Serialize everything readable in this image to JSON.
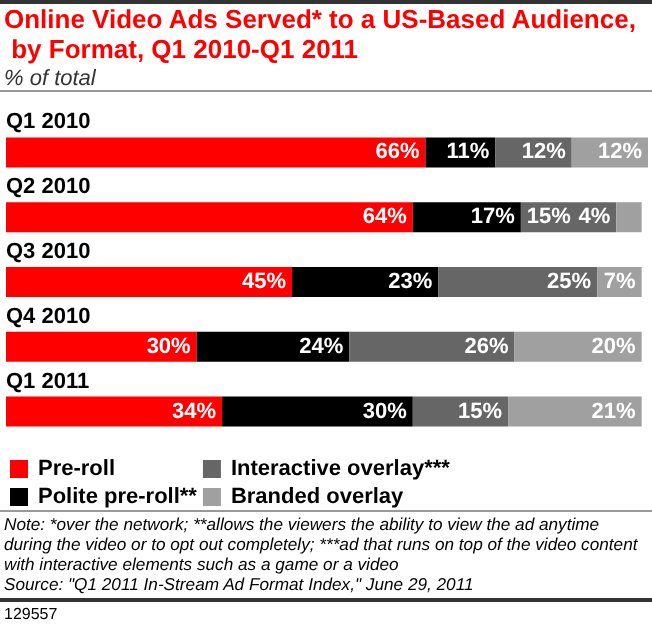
{
  "chart_data": {
    "type": "bar",
    "orientation": "horizontal",
    "stacked": true,
    "title": "Online Video Ads Served* to a US-Based Audience, by Format, Q1 2010-Q1 2011",
    "subtitle": "% of total",
    "categories": [
      "Q1 2010",
      "Q2 2010",
      "Q3 2010",
      "Q4 2010",
      "Q1 2011"
    ],
    "series": [
      {
        "name": "Pre-roll",
        "color": "#ff0000",
        "values": [
          66,
          64,
          45,
          30,
          34
        ],
        "value_labels": [
          "66%",
          "64%",
          "45%",
          "30%",
          "34%"
        ]
      },
      {
        "name": "Polite pre-roll**",
        "color": "#000000",
        "values": [
          11,
          17,
          23,
          24,
          30
        ],
        "value_labels": [
          "11%",
          "17%",
          "23%",
          "24%",
          "30%"
        ]
      },
      {
        "name": "Interactive overlay***",
        "color": "#666666",
        "values": [
          12,
          15,
          25,
          26,
          15
        ],
        "value_labels": [
          "12%",
          "15%",
          "25%",
          "26%",
          "15%"
        ]
      },
      {
        "name": "Branded overlay",
        "color": "#a0a0a0",
        "values": [
          12,
          4,
          7,
          20,
          21
        ],
        "value_labels": [
          "12%",
          "4%",
          "7%",
          "20%",
          "21%"
        ]
      }
    ],
    "legend": "bottom left",
    "annotations": [
      "Note: *over the network; **allows the viewers the ability to view the ad anytime during the video or to opt out completely; ***ad that runs on top of the video content with interactive elements such as a game or a video",
      "Source: \"Q1 2011 In-Stream Ad Format Index,\" June 29, 2011",
      "129557"
    ]
  }
}
